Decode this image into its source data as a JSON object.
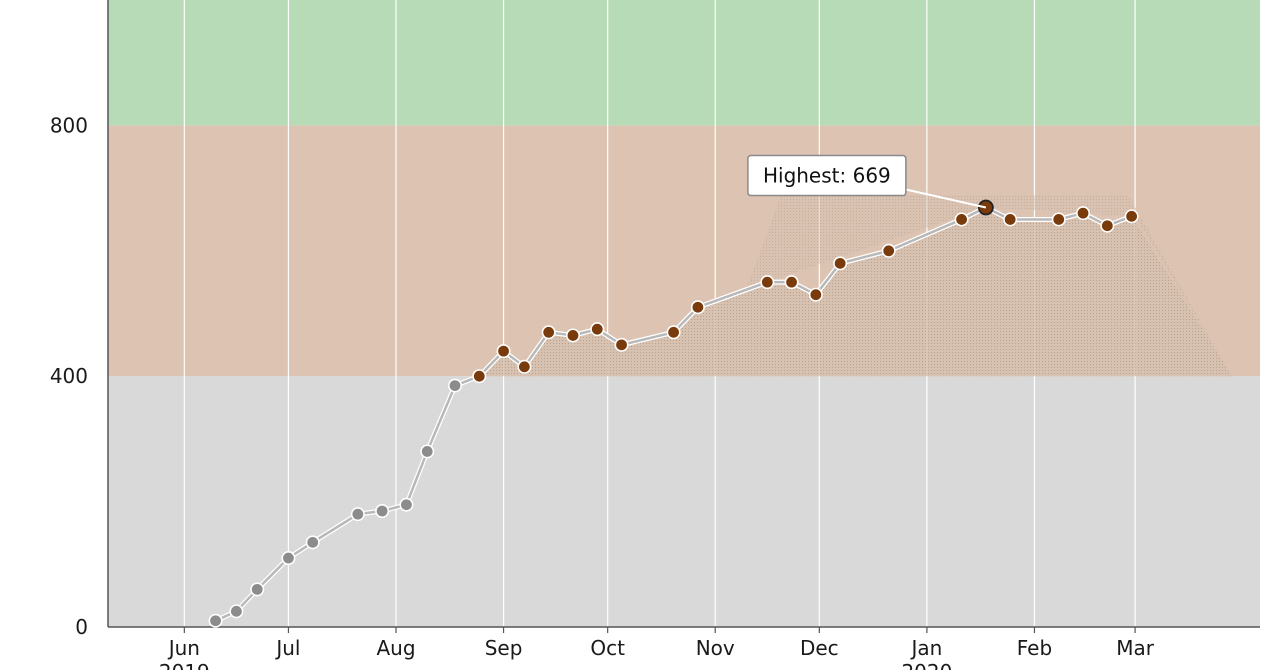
{
  "chart_data": {
    "type": "line",
    "title": "",
    "xlabel": "",
    "ylabel": "",
    "ylim": [
      0,
      1000
    ],
    "y_ticks": [
      0,
      400,
      800
    ],
    "x_tick_labels": [
      {
        "label": "Jun",
        "sub": "2019",
        "date": "2019-06-01"
      },
      {
        "label": "Jul",
        "sub": "",
        "date": "2019-07-01"
      },
      {
        "label": "Aug",
        "sub": "",
        "date": "2019-08-01"
      },
      {
        "label": "Sep",
        "sub": "",
        "date": "2019-09-01"
      },
      {
        "label": "Oct",
        "sub": "",
        "date": "2019-10-01"
      },
      {
        "label": "Nov",
        "sub": "",
        "date": "2019-11-01"
      },
      {
        "label": "Dec",
        "sub": "",
        "date": "2019-12-01"
      },
      {
        "label": "Jan",
        "sub": "2020",
        "date": "2020-01-01"
      },
      {
        "label": "Feb",
        "sub": "",
        "date": "2020-02-01"
      },
      {
        "label": "Mar",
        "sub": "",
        "date": "2020-03-01"
      }
    ],
    "x_range": [
      "2019-05-10",
      "2020-04-06"
    ],
    "grid": true,
    "bands": [
      {
        "from": 0,
        "to": 400,
        "color": "#d9d9d9"
      },
      {
        "from": 400,
        "to": 800,
        "color": "#dcc3b2"
      },
      {
        "from": 800,
        "to": 1000,
        "color": "#b6dbb6"
      }
    ],
    "series": [
      {
        "points": [
          {
            "x": "2019-06-10",
            "y": 10
          },
          {
            "x": "2019-06-16",
            "y": 25
          },
          {
            "x": "2019-06-22",
            "y": 60
          },
          {
            "x": "2019-07-01",
            "y": 110
          },
          {
            "x": "2019-07-08",
            "y": 135
          },
          {
            "x": "2019-07-21",
            "y": 180
          },
          {
            "x": "2019-07-28",
            "y": 185
          },
          {
            "x": "2019-08-04",
            "y": 195
          },
          {
            "x": "2019-08-10",
            "y": 280
          },
          {
            "x": "2019-08-18",
            "y": 385
          },
          {
            "x": "2019-08-25",
            "y": 400
          },
          {
            "x": "2019-09-01",
            "y": 440
          },
          {
            "x": "2019-09-07",
            "y": 415
          },
          {
            "x": "2019-09-14",
            "y": 470
          },
          {
            "x": "2019-09-21",
            "y": 465
          },
          {
            "x": "2019-09-28",
            "y": 475
          },
          {
            "x": "2019-10-05",
            "y": 450
          },
          {
            "x": "2019-10-20",
            "y": 470
          },
          {
            "x": "2019-10-27",
            "y": 510
          },
          {
            "x": "2019-11-16",
            "y": 550
          },
          {
            "x": "2019-11-23",
            "y": 550
          },
          {
            "x": "2019-11-30",
            "y": 530
          },
          {
            "x": "2019-12-07",
            "y": 580
          },
          {
            "x": "2019-12-21",
            "y": 600
          },
          {
            "x": "2020-01-11",
            "y": 650
          },
          {
            "x": "2020-01-18",
            "y": 669
          },
          {
            "x": "2020-01-25",
            "y": 650
          },
          {
            "x": "2020-02-08",
            "y": 650
          },
          {
            "x": "2020-02-15",
            "y": 660
          },
          {
            "x": "2020-02-22",
            "y": 640
          },
          {
            "x": "2020-02-29",
            "y": 655
          }
        ],
        "color_below_400": "#8c8c8c",
        "color_above_400": "#7a3b0c",
        "line_color": "#b8b8b8"
      }
    ],
    "annotations": [
      {
        "text": "Highest: 669",
        "x": "2020-01-18",
        "y": 669
      }
    ]
  }
}
